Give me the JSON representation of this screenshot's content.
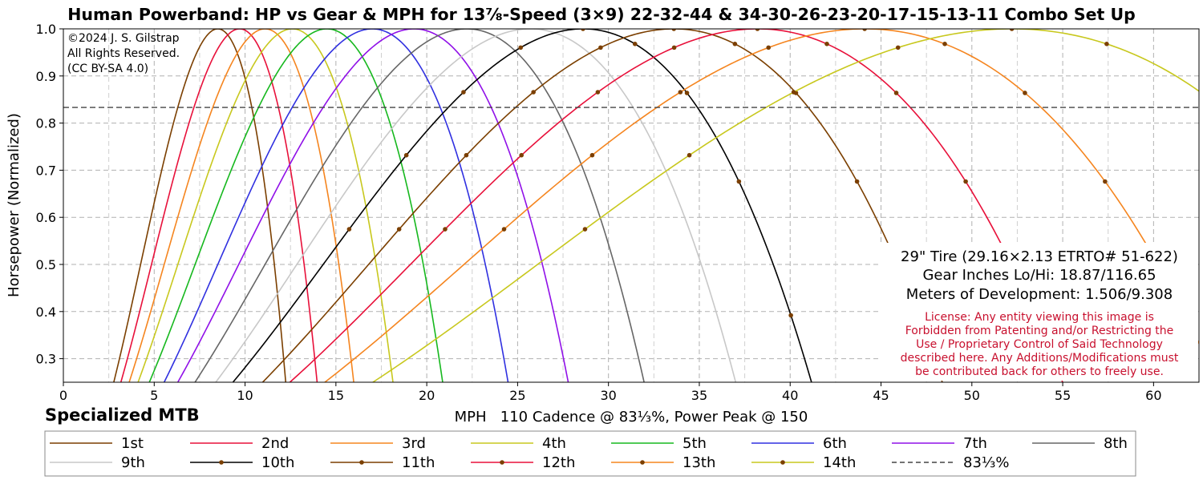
{
  "chart_data": {
    "type": "line",
    "title": "Human Powerband: HP vs Gear & MPH for 13⅞-Speed (3×9) 22-32-44 & 34-30-26-23-20-17-15-13-11 Combo Set Up",
    "xlabel": "MPH   110 Cadence @ 83⅓%, Power Peak @ 150",
    "ylabel": "Horsepower (Normalized)",
    "xlim": [
      0,
      62.5
    ],
    "ylim": [
      0.25,
      1.0
    ],
    "xticks": [
      0,
      5,
      10,
      15,
      20,
      25,
      30,
      35,
      40,
      45,
      50,
      55,
      60
    ],
    "yticks": [
      0.3,
      0.4,
      0.5,
      0.6,
      0.7,
      0.8,
      0.9,
      1.0
    ],
    "reference_line": {
      "name": "83⅓%",
      "y": 0.8333
    },
    "grid": true,
    "legend_position": "bottom",
    "series": [
      {
        "name": "1st",
        "peak_mph": 8.5,
        "color": "#7b3f00",
        "markers": false
      },
      {
        "name": "2nd",
        "peak_mph": 9.7,
        "color": "#e8103a",
        "markers": false
      },
      {
        "name": "3rd",
        "peak_mph": 11.1,
        "color": "#f5851f",
        "markers": false
      },
      {
        "name": "4th",
        "peak_mph": 12.6,
        "color": "#c8c81e",
        "markers": false
      },
      {
        "name": "5th",
        "peak_mph": 14.5,
        "color": "#16b81e",
        "markers": false
      },
      {
        "name": "6th",
        "peak_mph": 17.0,
        "color": "#3030e0",
        "markers": false
      },
      {
        "name": "7th",
        "peak_mph": 19.3,
        "color": "#9010e8",
        "markers": false
      },
      {
        "name": "8th",
        "peak_mph": 22.2,
        "color": "#666666",
        "markers": false
      },
      {
        "name": "9th",
        "peak_mph": 25.7,
        "color": "#c8c8c8",
        "markers": false
      },
      {
        "name": "10th",
        "peak_mph": 28.6,
        "color": "#000000",
        "markers": true
      },
      {
        "name": "11th",
        "peak_mph": 33.6,
        "color": "#7b3f00",
        "markers": true
      },
      {
        "name": "12th",
        "peak_mph": 38.2,
        "color": "#e8103a",
        "markers": true
      },
      {
        "name": "13th",
        "peak_mph": 44.1,
        "color": "#f5851f",
        "markers": true
      },
      {
        "name": "14th",
        "peak_mph": 52.2,
        "color": "#c8c81e",
        "markers": true
      }
    ]
  },
  "copyright": [
    "©2024 J. S. Gilstrap",
    "All Rights Reserved.",
    "(CC BY-SA 4.0)"
  ],
  "brand": "Specialized MTB",
  "info": {
    "tire": "29\" Tire (29.16×2.13 ETRTO# 51-622)",
    "gear_inches": "Gear Inches Lo/Hi: 18.87/116.65",
    "development": "Meters of Development: 1.506/9.308",
    "license": [
      "License: Any entity viewing this image is",
      "Forbidden from Patenting and/or Restricting the",
      "Use / Proprietary Control of Said Technology",
      "described here. Any Additions/Modifications must",
      "be contributed back for others to freely use."
    ]
  },
  "colors": {
    "license_text": "#c8102e",
    "reference_line": "#444444",
    "grid": "#b0b0b0"
  }
}
